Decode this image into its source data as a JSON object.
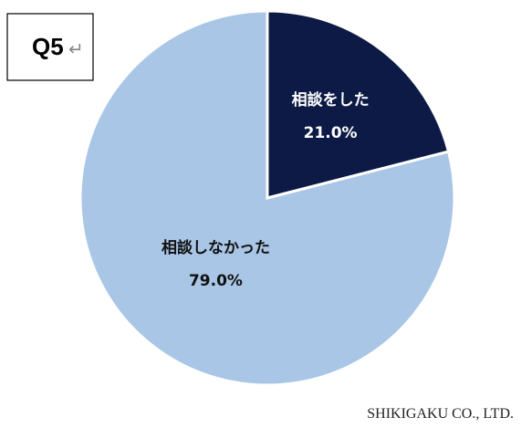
{
  "question": {
    "label": "Q5",
    "return_mark": "↵"
  },
  "chart_data": {
    "type": "pie",
    "categories": [
      "相談をした",
      "相談しなかった"
    ],
    "values": [
      21.0,
      79.0
    ],
    "value_labels": [
      "21.0%",
      "79.0%"
    ],
    "colors": [
      "#0d1a45",
      "#a9c6e6"
    ],
    "label_colors": [
      "#ffffff",
      "#111111"
    ],
    "start": "top",
    "direction": "clockwise"
  },
  "credit": "SHIKIGAKU CO., LTD."
}
